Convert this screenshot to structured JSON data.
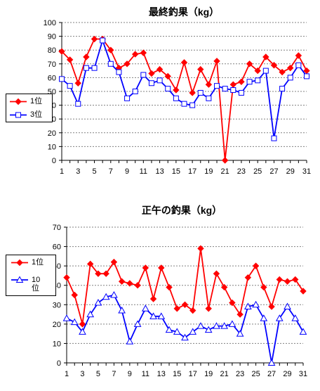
{
  "chart_data": [
    {
      "type": "line",
      "title": "最終釣果（kg）",
      "xlabel": "",
      "ylabel": "",
      "x": [
        1,
        2,
        3,
        4,
        5,
        6,
        7,
        8,
        9,
        10,
        11,
        12,
        13,
        14,
        15,
        16,
        17,
        18,
        19,
        20,
        21,
        22,
        23,
        24,
        25,
        26,
        27,
        28,
        29,
        30,
        31
      ],
      "xticks": [
        1,
        3,
        5,
        7,
        9,
        11,
        13,
        15,
        17,
        19,
        21,
        23,
        25,
        27,
        29,
        31
      ],
      "ylim": [
        0,
        100
      ],
      "yticks": [
        0,
        10,
        20,
        30,
        40,
        50,
        60,
        70,
        80,
        90,
        100
      ],
      "grid": true,
      "legend": "left",
      "series": [
        {
          "name": "1位",
          "color": "#ff0000",
          "marker": "diamond",
          "values": [
            79,
            73,
            56,
            75,
            88,
            88,
            80,
            67,
            70,
            77,
            78,
            63,
            66,
            61,
            51,
            71,
            49,
            66,
            55,
            72,
            0,
            55,
            57,
            70,
            65,
            75,
            69,
            64,
            67,
            76,
            65
          ]
        },
        {
          "name": "3位",
          "color": "#0000ff",
          "marker": "square-hollow",
          "values": [
            59,
            54,
            41,
            67,
            67,
            87,
            70,
            64,
            45,
            50,
            62,
            56,
            58,
            52,
            45,
            41,
            40,
            49,
            45,
            54,
            52,
            51,
            49,
            57,
            58,
            65,
            16,
            52,
            60,
            69,
            61
          ]
        }
      ]
    },
    {
      "type": "line",
      "title": "正午の釣果（kg）",
      "xlabel": "",
      "ylabel": "",
      "x": [
        1,
        2,
        3,
        4,
        5,
        6,
        7,
        8,
        9,
        10,
        11,
        12,
        13,
        14,
        15,
        16,
        17,
        18,
        19,
        20,
        21,
        22,
        23,
        24,
        25,
        26,
        27,
        28,
        29,
        30,
        31
      ],
      "xticks": [
        1,
        3,
        5,
        7,
        9,
        11,
        13,
        15,
        17,
        19,
        21,
        23,
        25,
        27,
        29,
        31
      ],
      "ylim": [
        0,
        70
      ],
      "yticks": [
        0,
        10,
        20,
        30,
        40,
        50,
        60,
        70
      ],
      "grid": true,
      "legend": "left",
      "series": [
        {
          "name": "1位",
          "color": "#ff0000",
          "marker": "diamond",
          "values": [
            44,
            35,
            20,
            51,
            46,
            46,
            52,
            42,
            41,
            40,
            49,
            33,
            49,
            39,
            28,
            30,
            27,
            59,
            28,
            46,
            39,
            31,
            25,
            44,
            50,
            39,
            29,
            43,
            42,
            43,
            37
          ]
        },
        {
          "name": "10位",
          "color": "#0000ff",
          "marker": "triangle-hollow",
          "values": [
            23,
            21,
            16,
            25,
            31,
            34,
            35,
            27,
            11,
            20,
            28,
            24,
            24,
            17,
            16,
            13,
            16,
            19,
            17,
            19,
            19,
            20,
            15,
            29,
            30,
            23,
            0,
            23,
            29,
            23,
            16
          ]
        }
      ]
    }
  ]
}
